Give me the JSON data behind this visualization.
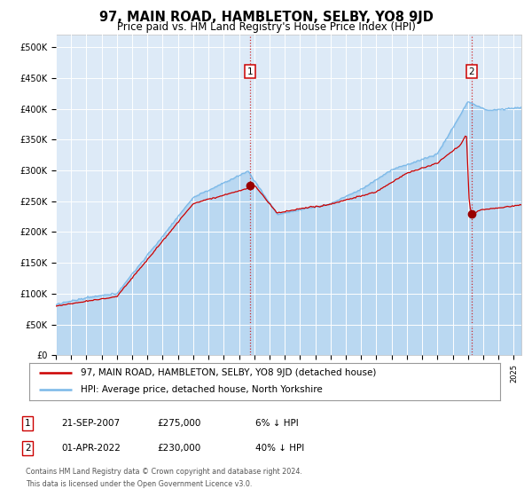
{
  "title": "97, MAIN ROAD, HAMBLETON, SELBY, YO8 9JD",
  "subtitle": "Price paid vs. HM Land Registry's House Price Index (HPI)",
  "title_fontsize": 10.5,
  "subtitle_fontsize": 8.5,
  "xlim_start": 1995.0,
  "xlim_end": 2025.5,
  "ylim": [
    0,
    520000
  ],
  "yticks": [
    0,
    50000,
    100000,
    150000,
    200000,
    250000,
    300000,
    350000,
    400000,
    450000,
    500000
  ],
  "ytick_labels": [
    "£0",
    "£50K",
    "£100K",
    "£150K",
    "£200K",
    "£250K",
    "£300K",
    "£350K",
    "£400K",
    "£450K",
    "£500K"
  ],
  "bg_color": "#ddeaf7",
  "hpi_line_color": "#7ab8e8",
  "price_line_color": "#cc0000",
  "marker_color": "#990000",
  "dashed_color": "#cc0000",
  "label1": "97, MAIN ROAD, HAMBLETON, SELBY, YO8 9JD (detached house)",
  "label2": "HPI: Average price, detached house, North Yorkshire",
  "annotation1_date": 2007.72,
  "annotation1_price": 275000,
  "annotation2_date": 2022.25,
  "annotation2_price": 230000,
  "footer_line1": "Contains HM Land Registry data © Crown copyright and database right 2024.",
  "footer_line2": "This data is licensed under the Open Government Licence v3.0.",
  "table_rows": [
    {
      "num": "1",
      "date": "21-SEP-2007",
      "price": "£275,000",
      "note": "6% ↓ HPI"
    },
    {
      "num": "2",
      "date": "01-APR-2022",
      "price": "£230,000",
      "note": "40% ↓ HPI"
    }
  ]
}
